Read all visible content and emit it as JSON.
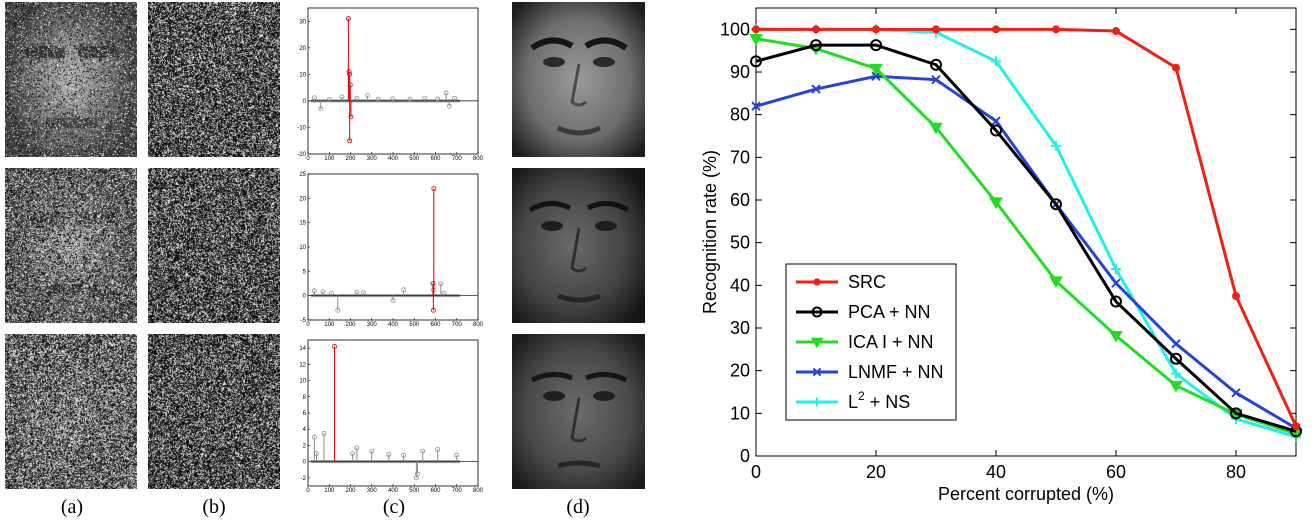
{
  "figure": {
    "panel_captions": [
      "(a)",
      "(b)",
      "(c)",
      "(d)"
    ]
  },
  "coefficient_plots": [
    {
      "yticks": [
        "30",
        "20",
        "10",
        "0",
        "-10",
        "-20"
      ],
      "xticks": [
        "0",
        "100",
        "200",
        "300",
        "400",
        "500",
        "600",
        "700",
        "800"
      ],
      "xlim": [
        0,
        800
      ],
      "ylim": [
        -20,
        35
      ],
      "red_stems": [
        [
          190,
          31
        ],
        [
          193,
          11
        ],
        [
          196,
          10
        ],
        [
          199,
          6
        ],
        [
          202,
          -6
        ],
        [
          196,
          -15
        ]
      ],
      "gray_stems": [
        [
          30,
          1.2
        ],
        [
          60,
          -3
        ],
        [
          100,
          0.5
        ],
        [
          160,
          1.5
        ],
        [
          230,
          1
        ],
        [
          280,
          2
        ],
        [
          330,
          0.6
        ],
        [
          400,
          0.8
        ],
        [
          480,
          0.7
        ],
        [
          550,
          1
        ],
        [
          610,
          0.7
        ],
        [
          650,
          3
        ],
        [
          665,
          -2
        ],
        [
          690,
          1
        ]
      ]
    },
    {
      "yticks": [
        "25",
        "20",
        "15",
        "10",
        "5",
        "0",
        "-5"
      ],
      "xticks": [
        "0",
        "100",
        "200",
        "300",
        "400",
        "500",
        "600",
        "700",
        "800"
      ],
      "xlim": [
        0,
        800
      ],
      "ylim": [
        -5,
        25
      ],
      "red_stems": [
        [
          592,
          22
        ],
        [
          588,
          2.5
        ],
        [
          590,
          -3
        ]
      ],
      "gray_stems": [
        [
          30,
          1
        ],
        [
          70,
          0.8
        ],
        [
          110,
          0.5
        ],
        [
          140,
          -3
        ],
        [
          230,
          0.7
        ],
        [
          260,
          0.6
        ],
        [
          400,
          -1
        ],
        [
          450,
          1.2
        ],
        [
          590,
          1.2
        ],
        [
          625,
          2.5
        ],
        [
          640,
          0.5
        ]
      ]
    },
    {
      "yticks": [
        "14",
        "12",
        "10",
        "8",
        "6",
        "4",
        "2",
        "0",
        "-2"
      ],
      "xticks": [
        "0",
        "100",
        "200",
        "300",
        "400",
        "500",
        "600",
        "700",
        "800"
      ],
      "xlim": [
        0,
        800
      ],
      "ylim": [
        -3,
        15
      ],
      "red_stems": [
        [
          125,
          14.2
        ]
      ],
      "gray_stems": [
        [
          30,
          3
        ],
        [
          40,
          1
        ],
        [
          75,
          3.5
        ],
        [
          210,
          1
        ],
        [
          230,
          1.7
        ],
        [
          300,
          1.3
        ],
        [
          380,
          0.9
        ],
        [
          450,
          0.8
        ],
        [
          510,
          -2
        ],
        [
          515,
          -1.5
        ],
        [
          540,
          1.3
        ],
        [
          610,
          1.5
        ],
        [
          700,
          0.8
        ]
      ]
    }
  ],
  "chart_data": {
    "type": "line",
    "xlabel": "Percent corrupted (%)",
    "ylabel": "Recognition rate (%)",
    "xlim": [
      0,
      90
    ],
    "ylim": [
      0,
      105
    ],
    "xticks": [
      0,
      20,
      40,
      60,
      80
    ],
    "yticks": [
      0,
      10,
      20,
      30,
      40,
      50,
      60,
      70,
      80,
      90,
      100
    ],
    "legend_position": "bottom-left",
    "x": [
      0,
      10,
      20,
      30,
      40,
      50,
      60,
      70,
      80,
      90
    ],
    "series": [
      {
        "name": "SRC",
        "color": "#ee2211",
        "marker": "dot",
        "values": [
          100,
          100,
          100,
          100,
          100,
          100,
          99.6,
          91,
          37.5,
          7
        ]
      },
      {
        "name": "PCA + NN",
        "color": "#000000",
        "marker": "circle",
        "values": [
          92.5,
          96.3,
          96.3,
          91.7,
          76.3,
          59,
          36.2,
          22.8,
          10,
          5.8
        ]
      },
      {
        "name": "ICA I + NN",
        "color": "#22dd22",
        "marker": "triangle-down",
        "values": [
          97.8,
          95.5,
          90.8,
          77,
          59.5,
          41,
          28.2,
          16.5,
          9.8,
          5.2
        ]
      },
      {
        "name": "LNMF + NN",
        "color": "#2244dd",
        "marker": "x",
        "values": [
          82,
          86,
          89,
          88.2,
          78.5,
          59,
          40.5,
          26.3,
          14.8,
          6.5
        ]
      },
      {
        "name": "L2 + NS",
        "label_base": "L",
        "label_sup": "2",
        "label_rest": " + NS",
        "color": "#22eeee",
        "marker": "plus",
        "values": [
          100,
          100,
          100,
          99.3,
          92.5,
          72.7,
          43.8,
          19.3,
          8.7,
          4.5
        ]
      }
    ]
  }
}
